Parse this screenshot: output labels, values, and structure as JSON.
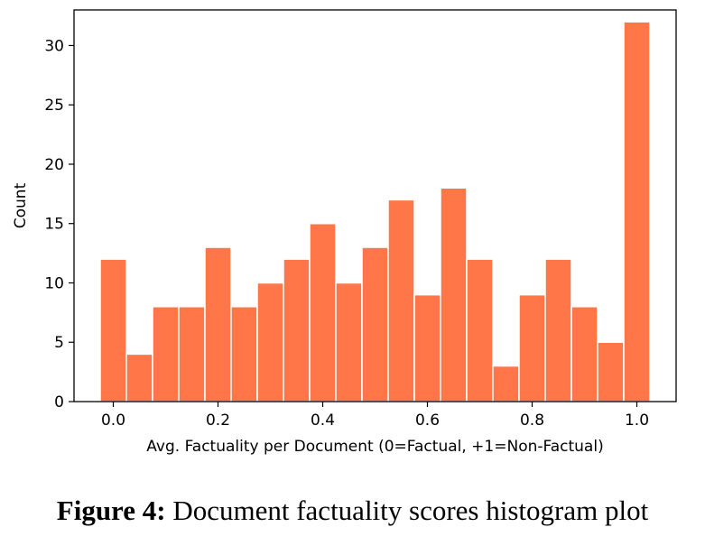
{
  "chart_data": {
    "type": "bar",
    "xlabel": "Avg. Factuality per Document (0=Factual, +1=Non-Factual)",
    "ylabel": "Count",
    "xlim": [
      -0.075,
      1.075
    ],
    "ylim": [
      0,
      33
    ],
    "xticks": [
      {
        "value": 0.0,
        "label": "0.0"
      },
      {
        "value": 0.2,
        "label": "0.2"
      },
      {
        "value": 0.4,
        "label": "0.4"
      },
      {
        "value": 0.6,
        "label": "0.6"
      },
      {
        "value": 0.8,
        "label": "0.8"
      },
      {
        "value": 1.0,
        "label": "1.0"
      }
    ],
    "yticks": [
      {
        "value": 0,
        "label": "0"
      },
      {
        "value": 5,
        "label": "5"
      },
      {
        "value": 10,
        "label": "10"
      },
      {
        "value": 15,
        "label": "15"
      },
      {
        "value": 20,
        "label": "20"
      },
      {
        "value": 25,
        "label": "25"
      },
      {
        "value": 30,
        "label": "30"
      }
    ],
    "bin_width": 0.05,
    "bin_start": -0.025,
    "values": [
      12,
      4,
      8,
      8,
      13,
      8,
      10,
      12,
      15,
      10,
      13,
      17,
      9,
      18,
      12,
      3,
      9,
      12,
      8,
      5,
      32
    ],
    "bar_color": "#FF7648",
    "edge_color": "#ffffff",
    "grid": false
  },
  "caption": {
    "label": "Figure 4:",
    "text": " Document factuality scores histogram plot"
  }
}
